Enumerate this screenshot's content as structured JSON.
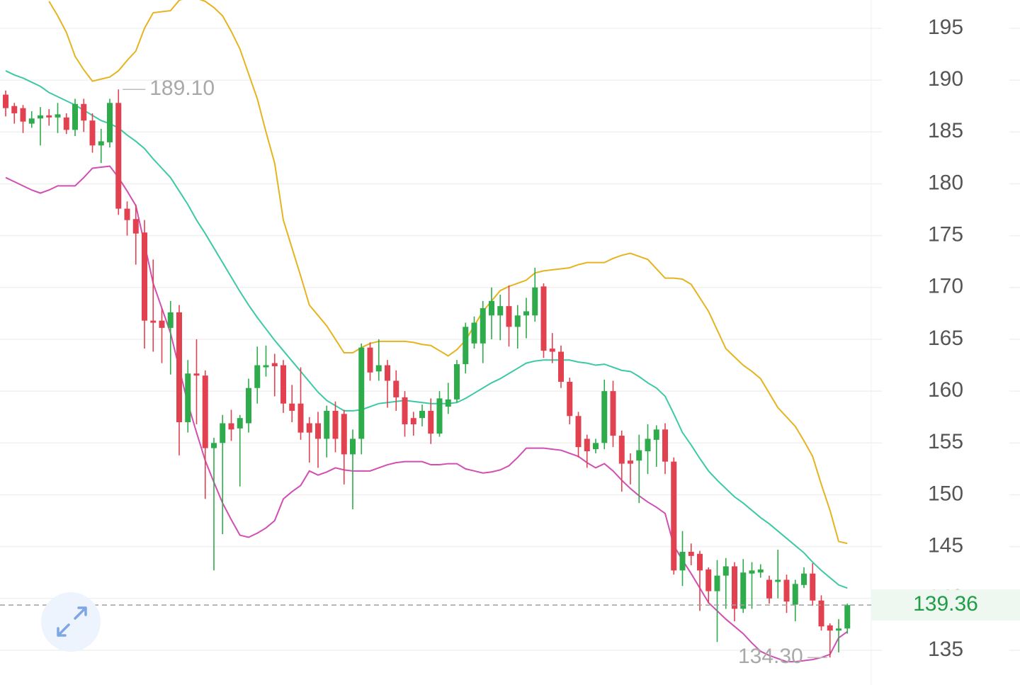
{
  "chart_data": {
    "type": "candlestick",
    "open": [
      188.6,
      187.5,
      187.3,
      185.8,
      186.3,
      186.6,
      186.4,
      186.4,
      185.2,
      187.7,
      186.1,
      183.7,
      184.0,
      187.8,
      177.6,
      176.6,
      175.3,
      166.8,
      166.8,
      166.1,
      167.6,
      157.0,
      161.7,
      161.5,
      154.5,
      155.0,
      156.9,
      156.4,
      156.9,
      160.3,
      162.3,
      162.7,
      162.5,
      158.8,
      158.8,
      156.9,
      156.9,
      155.4,
      158.1,
      157.8,
      153.9,
      155.4,
      164.2,
      161.9,
      162.5,
      161.0,
      159.4,
      157.4,
      157.4,
      158.1,
      155.9,
      158.5,
      159.2,
      162.6,
      164.6,
      164.6,
      167.3,
      167.3,
      168.2,
      166.2,
      167.3,
      167.3,
      170.1,
      164.1,
      163.8,
      160.9,
      157.6,
      155.4,
      154.4,
      155.0,
      160.0,
      155.7,
      153.3,
      153.3,
      154.2,
      155.3,
      156.3,
      153.2,
      142.7,
      144.5,
      144.3,
      142.8,
      140.7,
      142.2,
      143.1,
      139.0,
      142.4,
      142.5,
      141.8,
      141.6,
      141.8,
      139.4,
      141.3,
      142.4,
      139.8,
      137.4,
      136.9,
      137.1
    ],
    "high": [
      189.0,
      187.8,
      187.6,
      187.0,
      187.4,
      187.2,
      187.8,
      186.8,
      188.2,
      188.2,
      186.8,
      185.3,
      188.2,
      189.1,
      178.3,
      178.0,
      176.5,
      172.7,
      168.0,
      168.7,
      168.3,
      163.0,
      165.0,
      162.0,
      155.5,
      157.7,
      158.2,
      157.7,
      161.2,
      164.3,
      164.4,
      163.6,
      163.0,
      160.6,
      162.3,
      157.5,
      158.0,
      158.6,
      159.0,
      158.2,
      156.3,
      164.6,
      164.7,
      165.0,
      163.0,
      162.0,
      160.0,
      158.0,
      158.7,
      159.3,
      160.0,
      160.8,
      163.0,
      166.6,
      167.2,
      168.7,
      170.0,
      169.3,
      170.2,
      168.3,
      169.0,
      171.9,
      170.4,
      165.6,
      164.4,
      161.3,
      158.0,
      155.8,
      155.4,
      161.1,
      161.0,
      156.2,
      154.0,
      155.8,
      156.8,
      156.7,
      156.9,
      153.6,
      146.5,
      145.3,
      144.6,
      143.0,
      143.7,
      143.9,
      143.5,
      143.8,
      143.5,
      143.3,
      142.2,
      144.7,
      142.3,
      141.8,
      143.0,
      143.4,
      140.3,
      137.6,
      138.0,
      139.5
    ],
    "low": [
      186.5,
      185.8,
      184.9,
      185.4,
      183.7,
      185.6,
      184.9,
      184.8,
      184.6,
      185.0,
      183.0,
      182.0,
      183.5,
      177.0,
      175.0,
      172.2,
      164.1,
      163.8,
      162.7,
      161.6,
      153.8,
      156.0,
      156.8,
      149.6,
      142.7,
      146.2,
      155.2,
      150.8,
      156.0,
      158.8,
      161.4,
      159.5,
      157.9,
      157.0,
      155.3,
      153.1,
      152.6,
      153.6,
      154.1,
      151.0,
      148.6,
      153.9,
      161.0,
      161.0,
      158.4,
      158.1,
      155.6,
      155.7,
      156.6,
      154.9,
      155.6,
      157.8,
      158.9,
      161.7,
      164.1,
      162.7,
      165.0,
      164.9,
      164.3,
      164.1,
      165.1,
      166.7,
      163.2,
      162.7,
      160.3,
      156.8,
      153.6,
      152.6,
      154.0,
      154.4,
      154.6,
      150.3,
      151.0,
      149.2,
      152.0,
      152.7,
      152.0,
      142.3,
      141.2,
      143.2,
      138.8,
      139.5,
      135.8,
      139.0,
      137.8,
      138.6,
      139.0,
      142.0,
      139.5,
      140.0,
      138.6,
      137.8,
      141.0,
      139.3,
      136.9,
      134.3,
      134.8,
      136.6
    ],
    "close": [
      187.3,
      186.8,
      186.0,
      186.3,
      186.6,
      186.4,
      186.7,
      185.2,
      187.7,
      186.1,
      183.7,
      184.1,
      187.8,
      177.6,
      176.5,
      175.2,
      166.8,
      166.6,
      166.1,
      167.6,
      157.0,
      161.7,
      161.5,
      154.5,
      155.0,
      156.9,
      156.3,
      157.4,
      160.3,
      162.5,
      162.5,
      162.4,
      158.8,
      158.1,
      156.0,
      156.0,
      155.4,
      158.1,
      155.4,
      153.9,
      155.4,
      164.2,
      161.8,
      162.5,
      161.0,
      159.4,
      156.8,
      156.8,
      158.1,
      155.9,
      159.3,
      159.2,
      162.6,
      166.2,
      166.6,
      168.0,
      168.7,
      168.2,
      166.2,
      167.3,
      167.7,
      170.0,
      163.9,
      163.8,
      160.9,
      157.6,
      154.6,
      154.2,
      155.0,
      160.0,
      155.7,
      153.0,
      153.0,
      154.3,
      155.4,
      156.3,
      153.2,
      142.7,
      144.5,
      144.1,
      142.7,
      140.7,
      142.2,
      143.1,
      139.0,
      142.5,
      142.7,
      142.8,
      140.0,
      141.8,
      139.7,
      141.4,
      142.4,
      139.8,
      137.3,
      136.9,
      137.1,
      139.36
    ],
    "up_color": "#2eab4b",
    "down_color": "#e2414f",
    "lines": [
      {
        "color": "#e5b420",
        "values": [
          null,
          null,
          null,
          null,
          null,
          197.6,
          196.2,
          194.6,
          192.3,
          191.0,
          189.9,
          190.1,
          190.3,
          190.9,
          191.9,
          192.8,
          195.0,
          196.5,
          196.6,
          196.7,
          197.7,
          198.0,
          197.9,
          197.6,
          197.0,
          196.2,
          194.7,
          193.0,
          190.6,
          188.2,
          185.0,
          182.0,
          176.5,
          173.8,
          171.1,
          168.3,
          167.3,
          166.3,
          165.0,
          163.7,
          163.7,
          164.2,
          164.6,
          164.8,
          164.8,
          164.8,
          164.8,
          164.7,
          164.5,
          164.4,
          163.9,
          163.4,
          164.0,
          164.9,
          166.3,
          167.7,
          168.7,
          169.7,
          170.1,
          170.4,
          170.7,
          171.4,
          171.6,
          171.7,
          171.8,
          171.9,
          172.2,
          172.4,
          172.4,
          172.4,
          172.8,
          173.1,
          173.3,
          173.0,
          172.7,
          171.8,
          170.9,
          170.9,
          170.8,
          170.3,
          169.0,
          167.7,
          165.9,
          164.1,
          163.3,
          162.5,
          161.9,
          161.2,
          159.8,
          158.4,
          157.5,
          156.6,
          155.2,
          153.7,
          151.0,
          148.5,
          145.5,
          145.3
        ]
      },
      {
        "color": "#3cc9a6",
        "values": [
          190.9,
          190.5,
          190.2,
          189.8,
          189.4,
          188.8,
          188.4,
          188.0,
          187.6,
          187.1,
          186.6,
          186.1,
          185.8,
          185.4,
          184.7,
          184.1,
          183.4,
          182.4,
          181.5,
          180.6,
          179.3,
          178.0,
          176.5,
          175.2,
          173.8,
          172.4,
          171.0,
          169.6,
          168.3,
          167.1,
          166.0,
          164.9,
          163.9,
          162.9,
          161.9,
          160.9,
          159.9,
          159.1,
          158.6,
          158.1,
          158.1,
          158.2,
          158.5,
          158.8,
          158.9,
          159.0,
          159.1,
          159.0,
          158.9,
          158.8,
          158.8,
          158.8,
          158.9,
          159.3,
          159.8,
          160.3,
          160.8,
          161.2,
          161.7,
          162.2,
          162.7,
          162.9,
          163.0,
          163.0,
          163.0,
          163.0,
          162.8,
          162.7,
          162.5,
          162.6,
          162.3,
          162.0,
          161.9,
          161.4,
          160.8,
          160.3,
          159.5,
          157.8,
          156.0,
          154.8,
          153.5,
          152.3,
          151.4,
          150.6,
          149.8,
          149.2,
          148.5,
          147.8,
          147.2,
          146.5,
          145.8,
          145.1,
          144.4,
          143.5,
          142.7,
          142.0,
          141.3,
          141.0
        ]
      },
      {
        "color": "#d14fb3",
        "values": [
          180.6,
          180.2,
          179.8,
          179.4,
          179.1,
          179.4,
          179.8,
          179.8,
          179.8,
          180.6,
          181.5,
          181.6,
          181.7,
          180.6,
          179.3,
          177.9,
          174.2,
          170.4,
          168.0,
          165.6,
          162.2,
          158.8,
          156.0,
          153.3,
          151.2,
          149.2,
          147.6,
          146.1,
          145.9,
          146.3,
          146.8,
          147.5,
          149.6,
          150.3,
          150.9,
          152.3,
          151.9,
          152.2,
          152.6,
          152.4,
          152.3,
          152.3,
          152.3,
          152.6,
          152.9,
          153.1,
          153.2,
          153.2,
          153.2,
          152.9,
          152.9,
          153.0,
          153.0,
          152.5,
          152.3,
          152.1,
          152.2,
          152.4,
          152.8,
          153.6,
          154.5,
          154.5,
          154.5,
          154.4,
          154.3,
          154.0,
          153.7,
          153.1,
          152.6,
          153.0,
          152.3,
          151.4,
          150.6,
          149.9,
          149.3,
          148.8,
          148.2,
          145.1,
          143.7,
          142.4,
          141.0,
          139.6,
          138.8,
          138.0,
          137.3,
          136.6,
          135.7,
          134.9,
          134.5,
          134.2,
          133.9,
          133.9,
          134.0,
          134.1,
          134.3,
          134.6,
          136.2,
          136.8
        ]
      }
    ],
    "max_label": "189.10",
    "min_label": "134.30",
    "last_price": 139.36,
    "ylim": [
      131.65,
      197.73
    ],
    "yticks": [
      135,
      140,
      145,
      150,
      155,
      160,
      165,
      170,
      175,
      180,
      185,
      190,
      195
    ],
    "grid": true
  }
}
